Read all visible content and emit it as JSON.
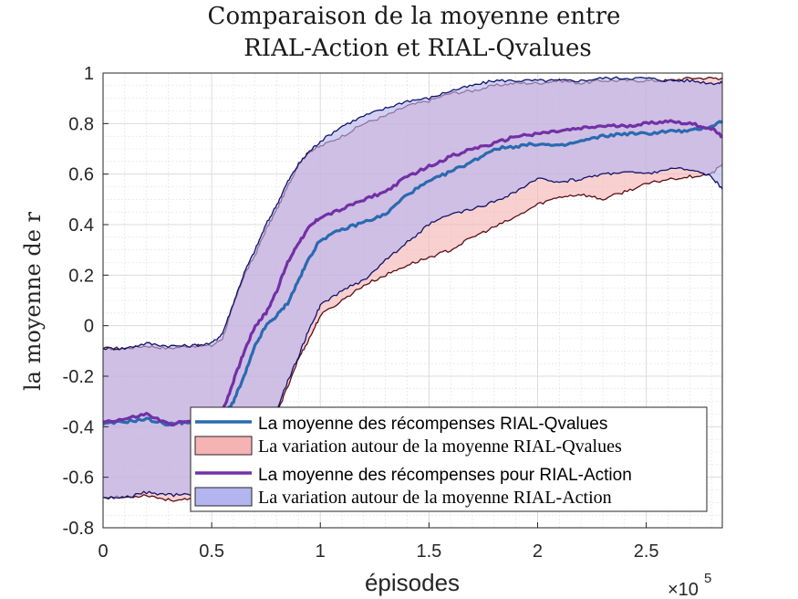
{
  "chart_data": {
    "type": "area",
    "title": [
      "Comparaison de la moyenne entre",
      "RIAL-Action et RIAL-Qvalues"
    ],
    "xlabel": "épisodes",
    "ylabel": "la moyenne de r",
    "x_exponent_label": "×10",
    "x_exponent_power": "5",
    "xlim": [
      0,
      2.85
    ],
    "ylim": [
      -0.8,
      1.0
    ],
    "x_ticks": [
      0,
      0.5,
      1,
      1.5,
      2,
      2.5
    ],
    "x_tick_labels": [
      "0",
      "0.5",
      "1",
      "1.5",
      "2",
      "2.5"
    ],
    "y_ticks": [
      -0.8,
      -0.6,
      -0.4,
      -0.2,
      0,
      0.2,
      0.4,
      0.6,
      0.8,
      1
    ],
    "y_tick_labels": [
      "-0.8",
      "-0.6",
      "-0.4",
      "-0.2",
      "0",
      "0.2",
      "0.4",
      "0.6",
      "0.8",
      "1"
    ],
    "grid": true,
    "minor_grid": true,
    "legend_position": "lower-right",
    "x": [
      0,
      0.1,
      0.2,
      0.3,
      0.4,
      0.5,
      0.55,
      0.6,
      0.65,
      0.7,
      0.75,
      0.8,
      0.85,
      0.9,
      0.95,
      1.0,
      1.1,
      1.2,
      1.3,
      1.4,
      1.5,
      1.6,
      1.7,
      1.8,
      1.9,
      2.0,
      2.1,
      2.2,
      2.3,
      2.4,
      2.5,
      2.6,
      2.7,
      2.8,
      2.85
    ],
    "series": [
      {
        "name": "La moyenne des récompenses RIAL-Qvalues",
        "kind": "mean",
        "color": "#2a6ab0",
        "values": [
          -0.39,
          -0.38,
          -0.37,
          -0.39,
          -0.38,
          -0.39,
          -0.36,
          -0.3,
          -0.2,
          -0.08,
          0.0,
          0.04,
          0.09,
          0.18,
          0.27,
          0.34,
          0.38,
          0.41,
          0.44,
          0.52,
          0.57,
          0.61,
          0.65,
          0.7,
          0.71,
          0.72,
          0.71,
          0.73,
          0.75,
          0.76,
          0.76,
          0.77,
          0.77,
          0.79,
          0.81
        ]
      },
      {
        "name": "La variation autour de la moyenne RIAL-Qvalues",
        "kind": "band",
        "fill": "#f5b3b3",
        "edge": "#5a0f14",
        "upper": [
          -0.09,
          -0.09,
          -0.08,
          -0.09,
          -0.08,
          -0.08,
          -0.05,
          0.08,
          0.2,
          0.28,
          0.38,
          0.46,
          0.55,
          0.64,
          0.69,
          0.71,
          0.75,
          0.8,
          0.83,
          0.87,
          0.89,
          0.92,
          0.93,
          0.95,
          0.96,
          0.96,
          0.97,
          0.96,
          0.97,
          0.97,
          0.97,
          0.97,
          0.98,
          0.98,
          0.98
        ],
        "lower": [
          -0.68,
          -0.68,
          -0.67,
          -0.69,
          -0.69,
          -0.69,
          -0.67,
          -0.66,
          -0.62,
          -0.54,
          -0.45,
          -0.35,
          -0.24,
          -0.13,
          -0.05,
          0.04,
          0.1,
          0.16,
          0.2,
          0.24,
          0.27,
          0.3,
          0.35,
          0.39,
          0.43,
          0.48,
          0.51,
          0.52,
          0.5,
          0.53,
          0.56,
          0.58,
          0.59,
          0.6,
          0.64
        ]
      },
      {
        "name": "La moyenne des récompenses pour RIAL-Action",
        "kind": "mean",
        "color": "#7230a6",
        "values": [
          -0.38,
          -0.37,
          -0.35,
          -0.39,
          -0.38,
          -0.39,
          -0.34,
          -0.22,
          -0.1,
          0.0,
          0.05,
          0.14,
          0.25,
          0.33,
          0.39,
          0.43,
          0.46,
          0.5,
          0.53,
          0.59,
          0.63,
          0.67,
          0.7,
          0.72,
          0.75,
          0.76,
          0.77,
          0.78,
          0.79,
          0.79,
          0.8,
          0.81,
          0.8,
          0.78,
          0.75
        ]
      },
      {
        "name": "La variation autour de la moyenne RIAL-Action",
        "kind": "band",
        "fill": "#b4b4f0",
        "edge": "#10146a",
        "upper": [
          -0.09,
          -0.09,
          -0.07,
          -0.08,
          -0.08,
          -0.07,
          -0.03,
          0.09,
          0.21,
          0.3,
          0.4,
          0.48,
          0.57,
          0.64,
          0.69,
          0.73,
          0.79,
          0.83,
          0.86,
          0.89,
          0.9,
          0.93,
          0.95,
          0.97,
          0.97,
          0.97,
          0.97,
          0.97,
          0.98,
          0.98,
          0.98,
          0.97,
          0.97,
          0.96,
          0.96
        ],
        "lower": [
          -0.68,
          -0.68,
          -0.66,
          -0.67,
          -0.67,
          -0.68,
          -0.66,
          -0.62,
          -0.57,
          -0.49,
          -0.41,
          -0.33,
          -0.22,
          -0.12,
          -0.01,
          0.08,
          0.14,
          0.18,
          0.26,
          0.33,
          0.4,
          0.44,
          0.46,
          0.49,
          0.53,
          0.58,
          0.57,
          0.58,
          0.6,
          0.61,
          0.6,
          0.62,
          0.62,
          0.59,
          0.54
        ]
      }
    ],
    "legend": [
      {
        "label": "La moyenne des récompenses RIAL-Qvalues",
        "kind": "line",
        "color": "#2a6ab0"
      },
      {
        "label": "La variation autour de la moyenne RIAL-Qvalues",
        "kind": "patch",
        "fill": "#f5b3b3"
      },
      {
        "label": "La moyenne des récompenses pour RIAL-Action",
        "kind": "line",
        "color": "#7230a6"
      },
      {
        "label": "La variation autour de la moyenne RIAL-Action",
        "kind": "patch",
        "fill": "#b4b4f0"
      }
    ]
  }
}
